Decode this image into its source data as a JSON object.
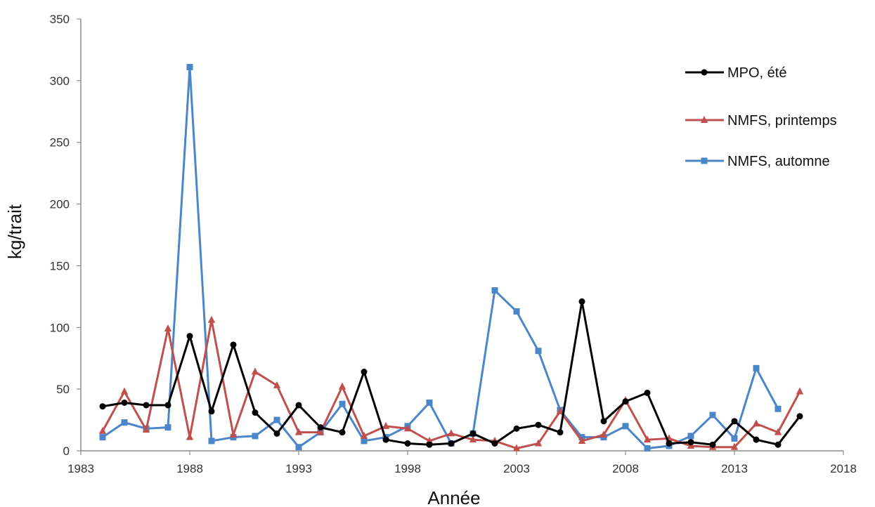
{
  "chart_data": {
    "type": "line",
    "xlabel": "Année",
    "ylabel": "kg/trait",
    "xlim": [
      1983,
      2018
    ],
    "ylim": [
      0,
      350
    ],
    "x_ticks": [
      1983,
      1988,
      1993,
      1998,
      2003,
      2008,
      2013,
      2018
    ],
    "y_ticks": [
      0,
      50,
      100,
      150,
      200,
      250,
      300,
      350
    ],
    "grid": false,
    "legend_position": "top-right",
    "series": [
      {
        "name": "MPO, été",
        "color": "#000000",
        "marker": "circle",
        "x": [
          1984,
          1985,
          1986,
          1987,
          1988,
          1989,
          1990,
          1991,
          1992,
          1993,
          1994,
          1995,
          1996,
          1997,
          1998,
          1999,
          2000,
          2001,
          2002,
          2003,
          2004,
          2005,
          2006,
          2007,
          2008,
          2009,
          2010,
          2011,
          2012,
          2013,
          2014,
          2015,
          2016
        ],
        "values": [
          36,
          39,
          37,
          37,
          93,
          32,
          86,
          31,
          14,
          37,
          19,
          15,
          64,
          9,
          6,
          5,
          6,
          14,
          6,
          18,
          21,
          15,
          121,
          24,
          40,
          47,
          6,
          7,
          5,
          24,
          9,
          5,
          28
        ]
      },
      {
        "name": "NMFS, printemps",
        "color": "#c0504d",
        "marker": "triangle",
        "x": [
          1984,
          1985,
          1986,
          1987,
          1988,
          1989,
          1990,
          1991,
          1992,
          1993,
          1994,
          1995,
          1996,
          1997,
          1998,
          1999,
          2000,
          2001,
          2002,
          2003,
          2004,
          2005,
          2006,
          2007,
          2008,
          2009,
          2010,
          2011,
          2012,
          2013,
          2014,
          2015,
          2016
        ],
        "values": [
          16,
          48,
          17,
          99,
          11,
          106,
          13,
          64,
          53,
          15,
          15,
          52,
          12,
          20,
          18,
          8,
          14,
          9,
          8,
          2,
          6,
          32,
          8,
          13,
          41,
          9,
          10,
          4,
          3,
          3,
          22,
          15,
          48
        ]
      },
      {
        "name": "NMFS, automne",
        "color": "#4a86c8",
        "marker": "square",
        "x": [
          1984,
          1985,
          1986,
          1987,
          1988,
          1989,
          1990,
          1991,
          1992,
          1993,
          1994,
          1995,
          1996,
          1997,
          1998,
          1999,
          2000,
          2001,
          2002,
          2003,
          2004,
          2005,
          2006,
          2007,
          2008,
          2009,
          2010,
          2011,
          2012,
          2013,
          2014,
          2015
        ],
        "values": [
          11,
          23,
          18,
          19,
          311,
          8,
          11,
          12,
          25,
          3,
          15,
          38,
          8,
          11,
          20,
          39,
          6,
          14,
          130,
          113,
          81,
          33,
          11,
          11,
          20,
          2,
          4,
          12,
          29,
          10,
          67,
          34
        ]
      }
    ]
  }
}
